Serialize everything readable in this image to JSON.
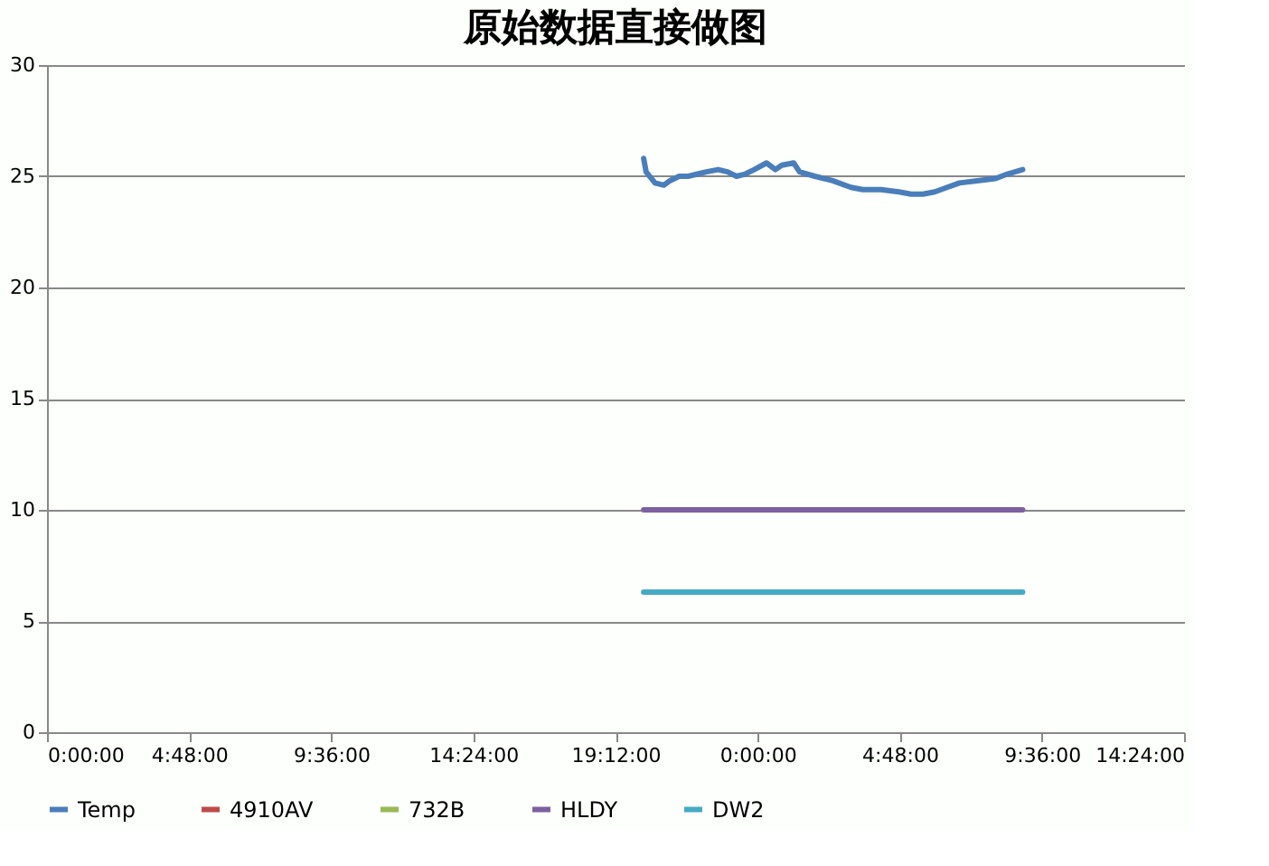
{
  "chart_data": {
    "type": "line",
    "title": "原始数据直接做图",
    "xlim": [
      "2000-01-01T00:00",
      "2000-01-02T14:24"
    ],
    "ylim": [
      0,
      30
    ],
    "xticks": [
      {
        "value": "2000-01-01T00:00",
        "label": "0:00:00"
      },
      {
        "value": "2000-01-01T04:48",
        "label": "4:48:00"
      },
      {
        "value": "2000-01-01T09:36",
        "label": "9:36:00"
      },
      {
        "value": "2000-01-01T14:24",
        "label": "14:24:00"
      },
      {
        "value": "2000-01-01T19:12",
        "label": "19:12:00"
      },
      {
        "value": "2000-01-02T00:00",
        "label": "0:00:00"
      },
      {
        "value": "2000-01-02T04:48",
        "label": "4:48:00"
      },
      {
        "value": "2000-01-02T09:36",
        "label": "9:36:00"
      },
      {
        "value": "2000-01-02T14:24",
        "label": "14:24:00"
      }
    ],
    "yticks": [
      0,
      5,
      10,
      15,
      20,
      25,
      30
    ],
    "grid": "y",
    "legend": "bottom",
    "marker": "none",
    "line_style": "solid",
    "series": [
      {
        "name": "Temp",
        "color": "#4a7ebb",
        "x": [
          "2000-01-01T20:09",
          "2000-01-01T20:14",
          "2000-01-01T20:32",
          "2000-01-01T20:50",
          "2000-01-01T21:02",
          "2000-01-01T21:21",
          "2000-01-01T21:39",
          "2000-01-01T21:58",
          "2000-01-01T22:16",
          "2000-01-01T22:40",
          "2000-01-01T22:59",
          "2000-01-01T23:17",
          "2000-01-01T23:35",
          "2000-01-01T23:53",
          "2000-01-02T00:18",
          "2000-01-02T00:36",
          "2000-01-02T00:49",
          "2000-01-02T01:13",
          "2000-01-02T01:25",
          "2000-01-02T01:56",
          "2000-01-02T02:32",
          "2000-01-02T03:09",
          "2000-01-02T03:33",
          "2000-01-02T04:10",
          "2000-01-02T04:46",
          "2000-01-02T05:11",
          "2000-01-02T05:35",
          "2000-01-02T05:59",
          "2000-01-02T06:24",
          "2000-01-02T06:49",
          "2000-01-02T07:25",
          "2000-01-02T08:02",
          "2000-01-02T08:26",
          "2000-01-02T08:57"
        ],
        "values": [
          25.8,
          25.2,
          24.7,
          24.6,
          24.8,
          25.0,
          25.0,
          25.1,
          25.2,
          25.3,
          25.2,
          25.0,
          25.1,
          25.3,
          25.6,
          25.3,
          25.5,
          25.6,
          25.2,
          25.0,
          24.8,
          24.5,
          24.4,
          24.4,
          24.3,
          24.2,
          24.2,
          24.3,
          24.5,
          24.7,
          24.8,
          24.9,
          25.1,
          25.3
        ]
      },
      {
        "name": "4910AV",
        "color": "#be4b48"
      },
      {
        "name": "732B",
        "color": "#98b954"
      },
      {
        "name": "HLDY",
        "color": "#7d60a0",
        "x": [
          "2000-01-01T20:09",
          "2000-01-02T08:57"
        ],
        "values": [
          10,
          10
        ]
      },
      {
        "name": "DW2",
        "color": "#46aac5",
        "x": [
          "2000-01-01T20:09",
          "2000-01-02T08:57"
        ],
        "values": [
          6.3,
          6.3
        ]
      }
    ]
  }
}
